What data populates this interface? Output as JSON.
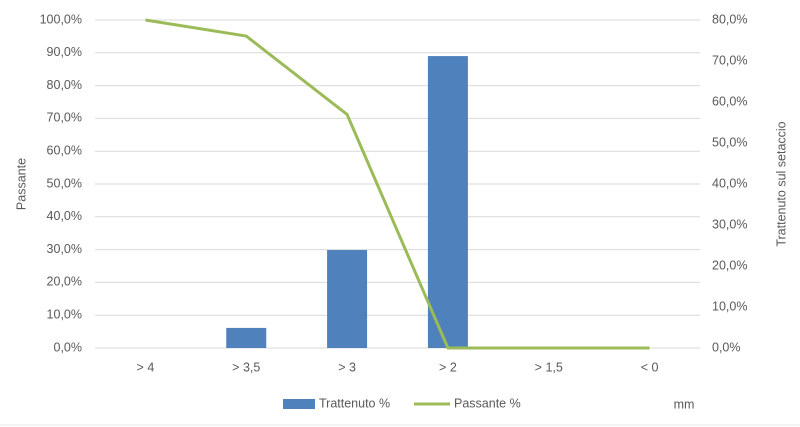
{
  "chart_data": {
    "type": "combo",
    "categories": [
      "> 4",
      "> 3,5",
      "> 3",
      "> 2",
      "> 1,5",
      "< 0"
    ],
    "series": [
      {
        "name": "Trattenuto %",
        "type": "bar",
        "axis": "y2",
        "color": "#4f81bd",
        "values": [
          0,
          4.9,
          23.9,
          71.2,
          0,
          0
        ]
      },
      {
        "name": "Passante %",
        "type": "line",
        "color": "#9bbb59",
        "values": [
          100,
          95.1,
          71.2,
          0,
          0,
          0
        ]
      }
    ],
    "y_label": "Passante",
    "y2_label": "Trattenuto sul setaccio",
    "x_label": "mm",
    "ylim": [
      0,
      100
    ],
    "yticks": [
      {
        "value": 0,
        "label": "0,0%"
      },
      {
        "value": 10,
        "label": "10,0%"
      },
      {
        "value": 20,
        "label": "20,0%"
      },
      {
        "value": 30,
        "label": "30,0%"
      },
      {
        "value": 40,
        "label": "40,0%"
      },
      {
        "value": 50,
        "label": "50,0%"
      },
      {
        "value": 60,
        "label": "60,0%"
      },
      {
        "value": 70,
        "label": "70,0%"
      },
      {
        "value": 80,
        "label": "80,0%"
      },
      {
        "value": 90,
        "label": "90,0%"
      },
      {
        "value": 100,
        "label": "100,0%"
      }
    ],
    "y2lim": [
      0,
      80
    ],
    "y2ticks": [
      {
        "value": 0,
        "label": "0,0%"
      },
      {
        "value": 10,
        "label": "10,0%"
      },
      {
        "value": 20,
        "label": "20,0%"
      },
      {
        "value": 30,
        "label": "30,0%"
      },
      {
        "value": 40,
        "label": "40,0%"
      },
      {
        "value": 50,
        "label": "50,0%"
      },
      {
        "value": 60,
        "label": "60,0%"
      },
      {
        "value": 70,
        "label": "70,0%"
      },
      {
        "value": 80,
        "label": "80,0%"
      }
    ],
    "grid": true,
    "legend": "bottom"
  }
}
